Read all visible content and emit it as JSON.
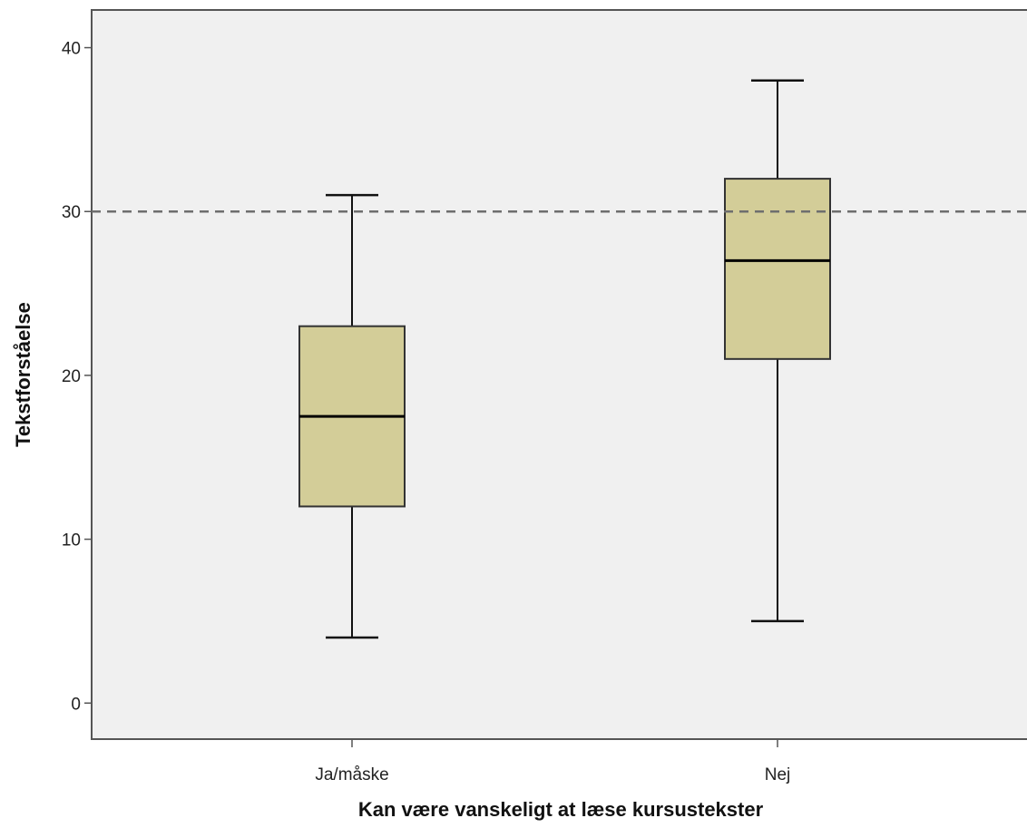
{
  "chart_data": {
    "type": "boxplot",
    "xlabel": "Kan være vanskeligt at læse kursustekster",
    "ylabel": "Tekstforståelse",
    "ylim": [
      -2.2,
      42.3
    ],
    "yticks": [
      0,
      10,
      20,
      30,
      40
    ],
    "grid": false,
    "reference_line": {
      "y": 30,
      "style": "dashed"
    },
    "categories": [
      "Ja/måske",
      "Nej"
    ],
    "boxes": [
      {
        "category": "Ja/måske",
        "min": 4,
        "q1": 12,
        "median": 17.5,
        "q3": 23,
        "max": 31
      },
      {
        "category": "Nej",
        "min": 5,
        "q1": 21,
        "median": 27,
        "q3": 32,
        "max": 38
      }
    ],
    "colors": {
      "box_fill": "#d3cd98",
      "plot_background": "#f0f0f0",
      "reference_line": "#6e6e6e"
    }
  }
}
